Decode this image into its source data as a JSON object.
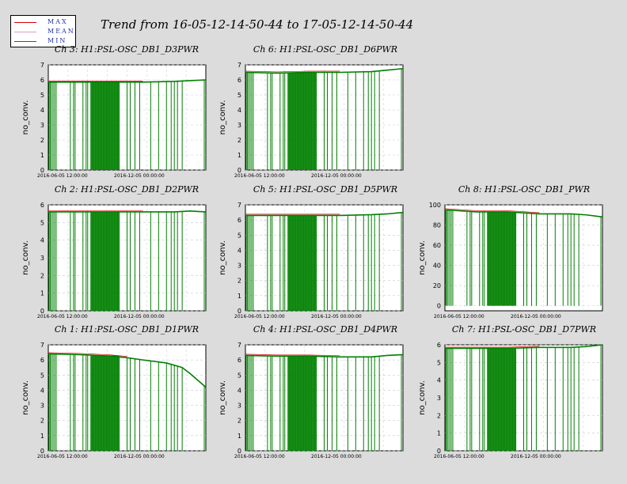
{
  "title": "Trend from 16-05-12-14-50-44 to 17-05-12-14-50-44",
  "legend": {
    "items": [
      {
        "label": "MAX",
        "color": "#cc0000"
      },
      {
        "label": "MEAN",
        "color": "#d4a0c8"
      },
      {
        "label": "MIN",
        "color": "#008000"
      }
    ]
  },
  "colors": {
    "data": "#008000",
    "max": "#cc0000",
    "background": "#dcdcdc",
    "plot_bg": "#ffffff",
    "grid": "#c8c8dc"
  },
  "chart_data": [
    {
      "type": "line",
      "title": "Ch 3: H1:PSL-OSC_DB1_D3PWR",
      "ylabel": "no_conv.",
      "ylim": [
        0,
        7
      ],
      "yticks": [
        0,
        1,
        2,
        3,
        4,
        5,
        6,
        7
      ],
      "xticks": [
        "2016-06-05 12:00:00",
        "2016-12-05 00:00:00"
      ],
      "x": [
        0,
        0.2,
        0.4,
        0.6,
        0.8,
        0.9,
        1.0
      ],
      "series": [
        {
          "values": [
            5.85,
            5.85,
            5.85,
            5.85,
            5.9,
            5.95,
            6.0
          ]
        }
      ]
    },
    {
      "type": "line",
      "title": "Ch 6: H1:PSL-OSC_DB1_D6PWR",
      "ylabel": "no_conv.",
      "ylim": [
        0,
        7
      ],
      "yticks": [
        0,
        1,
        2,
        3,
        4,
        5,
        6,
        7
      ],
      "xticks": [
        "2016-06-05 12:00:00",
        "2016-12-05 00:00:00"
      ],
      "x": [
        0,
        0.2,
        0.4,
        0.6,
        0.8,
        0.9,
        1.0
      ],
      "series": [
        {
          "values": [
            6.5,
            6.45,
            6.5,
            6.5,
            6.55,
            6.65,
            6.75
          ]
        }
      ]
    },
    {
      "type": "line",
      "title": "Ch 2: H1:PSL-OSC_DB1_D2PWR",
      "ylabel": "no_conv.",
      "ylim": [
        0,
        6
      ],
      "yticks": [
        0,
        1,
        2,
        3,
        4,
        5,
        6
      ],
      "xticks": [
        "2016-06-05 12:00:00",
        "2016-12-05 00:00:00"
      ],
      "x": [
        0,
        0.2,
        0.4,
        0.6,
        0.8,
        0.9,
        1.0
      ],
      "series": [
        {
          "values": [
            5.6,
            5.6,
            5.6,
            5.6,
            5.6,
            5.65,
            5.6
          ]
        }
      ]
    },
    {
      "type": "line",
      "title": "Ch 5: H1:PSL-OSC_DB1_D5PWR",
      "ylabel": "no_conv.",
      "ylim": [
        0,
        7
      ],
      "yticks": [
        0,
        1,
        2,
        3,
        4,
        5,
        6,
        7
      ],
      "xticks": [
        "2016-06-05 12:00:00",
        "2016-12-05 00:00:00"
      ],
      "x": [
        0,
        0.2,
        0.4,
        0.6,
        0.8,
        0.9,
        1.0
      ],
      "series": [
        {
          "values": [
            6.3,
            6.3,
            6.3,
            6.3,
            6.35,
            6.4,
            6.5
          ]
        }
      ]
    },
    {
      "type": "line",
      "title": "Ch 8: H1:PSL-OSC_DB1_PWR",
      "ylabel": "no_conv.",
      "ylim": [
        -5,
        100
      ],
      "yticks": [
        0,
        20,
        40,
        60,
        80,
        100
      ],
      "xticks": [
        "2016-06-05 12:00:00",
        "2016-12-05 00:00:00"
      ],
      "x": [
        0,
        0.2,
        0.4,
        0.6,
        0.8,
        0.9,
        1.0
      ],
      "series": [
        {
          "values": [
            95,
            93,
            93,
            91,
            91,
            90,
            88
          ]
        }
      ]
    },
    {
      "type": "line",
      "title": "Ch 1: H1:PSL-OSC_DB1_D1PWR",
      "ylabel": "no_conv.",
      "ylim": [
        0,
        7
      ],
      "yticks": [
        0,
        1,
        2,
        3,
        4,
        5,
        6,
        7
      ],
      "xticks": [
        "2016-06-05 12:00:00",
        "2016-12-05 00:00:00"
      ],
      "x": [
        0,
        0.2,
        0.4,
        0.5,
        0.6,
        0.75,
        0.85,
        0.9,
        1.0
      ],
      "series": [
        {
          "values": [
            6.4,
            6.35,
            6.25,
            6.15,
            6.0,
            5.8,
            5.5,
            5.1,
            4.2
          ]
        }
      ]
    },
    {
      "type": "line",
      "title": "Ch 4: H1:PSL-OSC_DB1_D4PWR",
      "ylabel": "no_conv.",
      "ylim": [
        0,
        7
      ],
      "yticks": [
        0,
        1,
        2,
        3,
        4,
        5,
        6,
        7
      ],
      "xticks": [
        "2016-06-05 12:00:00",
        "2016-12-05 00:00:00"
      ],
      "x": [
        0,
        0.2,
        0.4,
        0.6,
        0.8,
        0.9,
        1.0
      ],
      "series": [
        {
          "values": [
            6.3,
            6.25,
            6.25,
            6.2,
            6.2,
            6.3,
            6.35
          ]
        }
      ]
    },
    {
      "type": "line",
      "title": "Ch 7: H1:PSL-OSC_DB1_D7PWR",
      "ylabel": "no_conv.",
      "ylim": [
        0,
        6
      ],
      "yticks": [
        0,
        1,
        2,
        3,
        4,
        5,
        6
      ],
      "xticks": [
        "2016-06-05 12:00:00",
        "2016-12-05 00:00:00"
      ],
      "x": [
        0,
        0.2,
        0.4,
        0.6,
        0.8,
        0.9,
        1.0
      ],
      "series": [
        {
          "values": [
            5.8,
            5.8,
            5.8,
            5.85,
            5.85,
            5.9,
            6.0
          ]
        }
      ]
    }
  ]
}
